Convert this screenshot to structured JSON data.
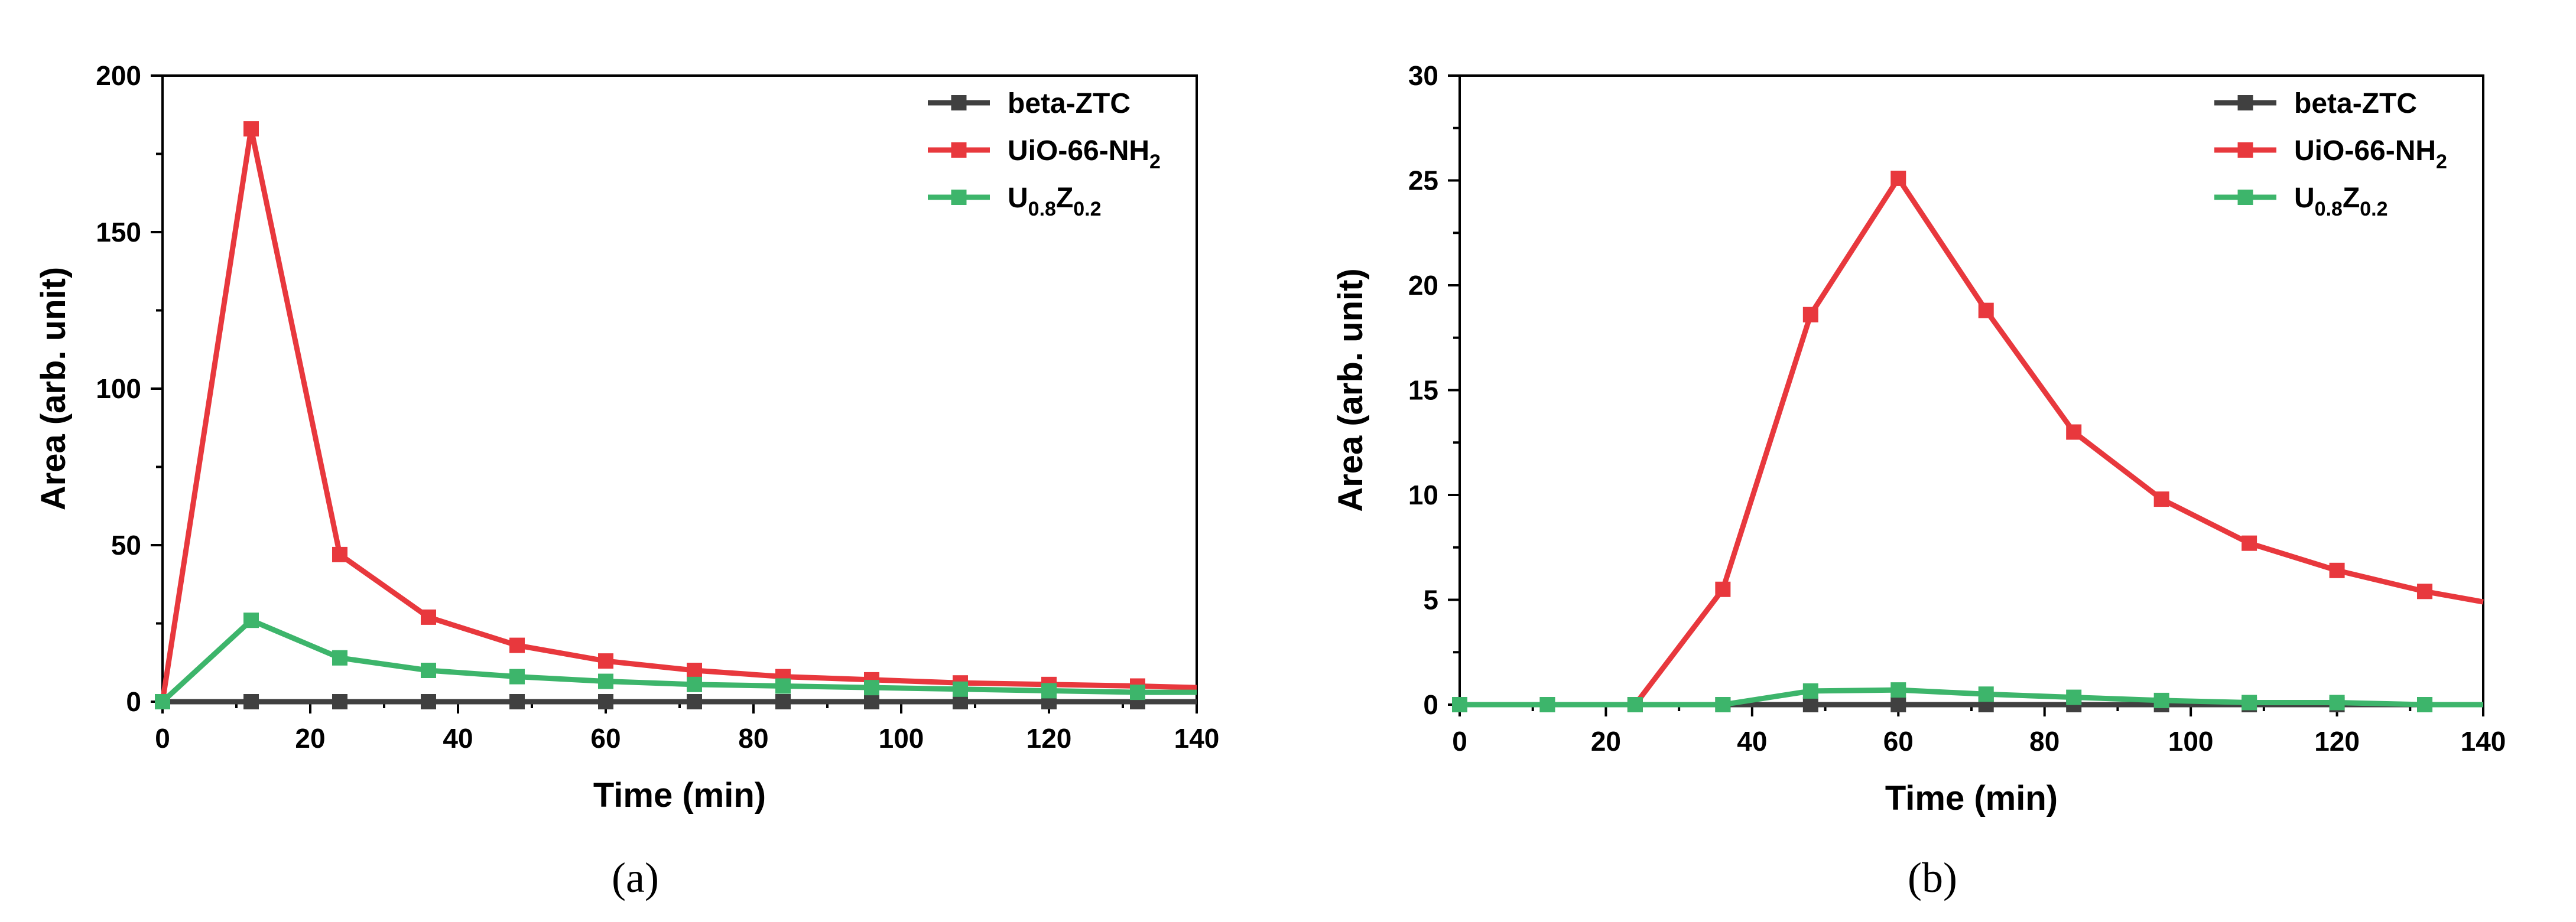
{
  "chart_data": [
    {
      "type": "line",
      "panel": "a",
      "caption": "(a)",
      "xlabel": "Time (min)",
      "ylabel": "Area (arb. unit)",
      "xlim": [
        0,
        140
      ],
      "ylim": [
        0,
        200
      ],
      "xticks": [
        0,
        20,
        40,
        60,
        80,
        100,
        120,
        140
      ],
      "yticks": [
        0,
        50,
        100,
        150,
        200
      ],
      "grid": false,
      "legend_position": "top-right",
      "x": [
        0,
        12,
        24,
        36,
        48,
        60,
        72,
        84,
        96,
        108,
        120,
        132,
        140
      ],
      "series": [
        {
          "name": "beta-ZTC",
          "color": "#404040",
          "values": [
            0,
            0,
            0,
            0,
            0,
            0,
            0,
            0,
            0,
            0,
            0,
            0,
            0
          ]
        },
        {
          "name": "UiO-66-NH",
          "subscript": "2",
          "color": "#e8383d",
          "values": [
            0,
            183,
            47,
            27,
            18,
            13,
            10,
            8,
            7,
            6,
            5.5,
            5,
            4.5
          ]
        },
        {
          "name": "U",
          "subscript": "0.8",
          "name2": "Z",
          "subscript2": "0.2",
          "color": "#3db56b",
          "values": [
            0,
            26,
            14,
            10,
            8,
            6.5,
            5.5,
            5,
            4.5,
            4,
            3.5,
            3,
            3
          ]
        }
      ]
    },
    {
      "type": "line",
      "panel": "b",
      "caption": "(b)",
      "xlabel": "Time (min)",
      "ylabel": "Area (arb. unit)",
      "xlim": [
        0,
        140
      ],
      "ylim": [
        0,
        30
      ],
      "xticks": [
        0,
        20,
        40,
        60,
        80,
        100,
        120,
        140
      ],
      "yticks": [
        0,
        5,
        10,
        15,
        20,
        25,
        30
      ],
      "grid": false,
      "legend_position": "top-right",
      "x": [
        0,
        12,
        24,
        36,
        48,
        60,
        72,
        84,
        96,
        108,
        120,
        132,
        140
      ],
      "series": [
        {
          "name": "beta-ZTC",
          "color": "#404040",
          "values": [
            0,
            0,
            0,
            0,
            0,
            0,
            0,
            0,
            0,
            0,
            0,
            0,
            0
          ]
        },
        {
          "name": "UiO-66-NH",
          "subscript": "2",
          "color": "#e8383d",
          "values": [
            0,
            0,
            0,
            5.5,
            18.6,
            25.1,
            18.8,
            13,
            9.8,
            7.7,
            6.4,
            5.4,
            4.9
          ]
        },
        {
          "name": "U",
          "subscript": "0.8",
          "name2": "Z",
          "subscript2": "0.2",
          "color": "#3db56b",
          "values": [
            0,
            0,
            0,
            0,
            0.65,
            0.7,
            0.5,
            0.35,
            0.2,
            0.1,
            0.1,
            0,
            0
          ]
        }
      ]
    }
  ]
}
